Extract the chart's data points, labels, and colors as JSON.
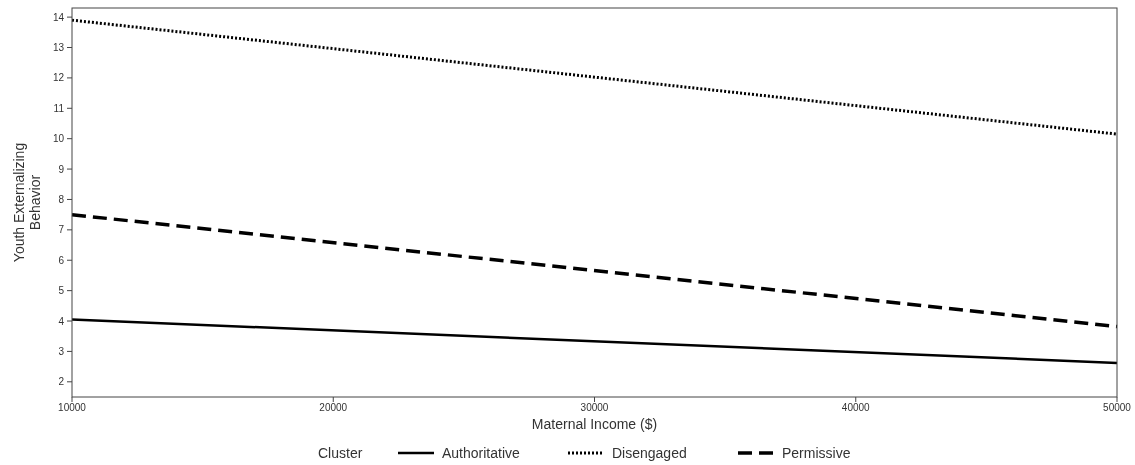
{
  "chart_data": {
    "type": "line",
    "xlabel": "Maternal Income ($)",
    "ylabel": "Youth Externalizing Behavior",
    "legend_title": "Cluster",
    "legend": "bottom",
    "grid": false,
    "marker": "none",
    "xlim": [
      10000,
      50000
    ],
    "xticks": [
      10000,
      20000,
      30000,
      40000,
      50000
    ],
    "ylim": [
      1.5,
      14.3
    ],
    "yticks": [
      2,
      3,
      4,
      5,
      6,
      7,
      8,
      9,
      10,
      11,
      12,
      13,
      14
    ],
    "x": [
      10000,
      50000
    ],
    "series": [
      {
        "name": "Authoritative",
        "color": "#000000",
        "line_style": "solid",
        "values": [
          4.05,
          2.62
        ]
      },
      {
        "name": "Disengaged",
        "color": "#000000",
        "line_style": "dotted",
        "values": [
          13.9,
          10.15
        ]
      },
      {
        "name": "Permissive",
        "color": "#000000",
        "line_style": "dashed",
        "values": [
          7.5,
          3.82
        ]
      }
    ]
  }
}
